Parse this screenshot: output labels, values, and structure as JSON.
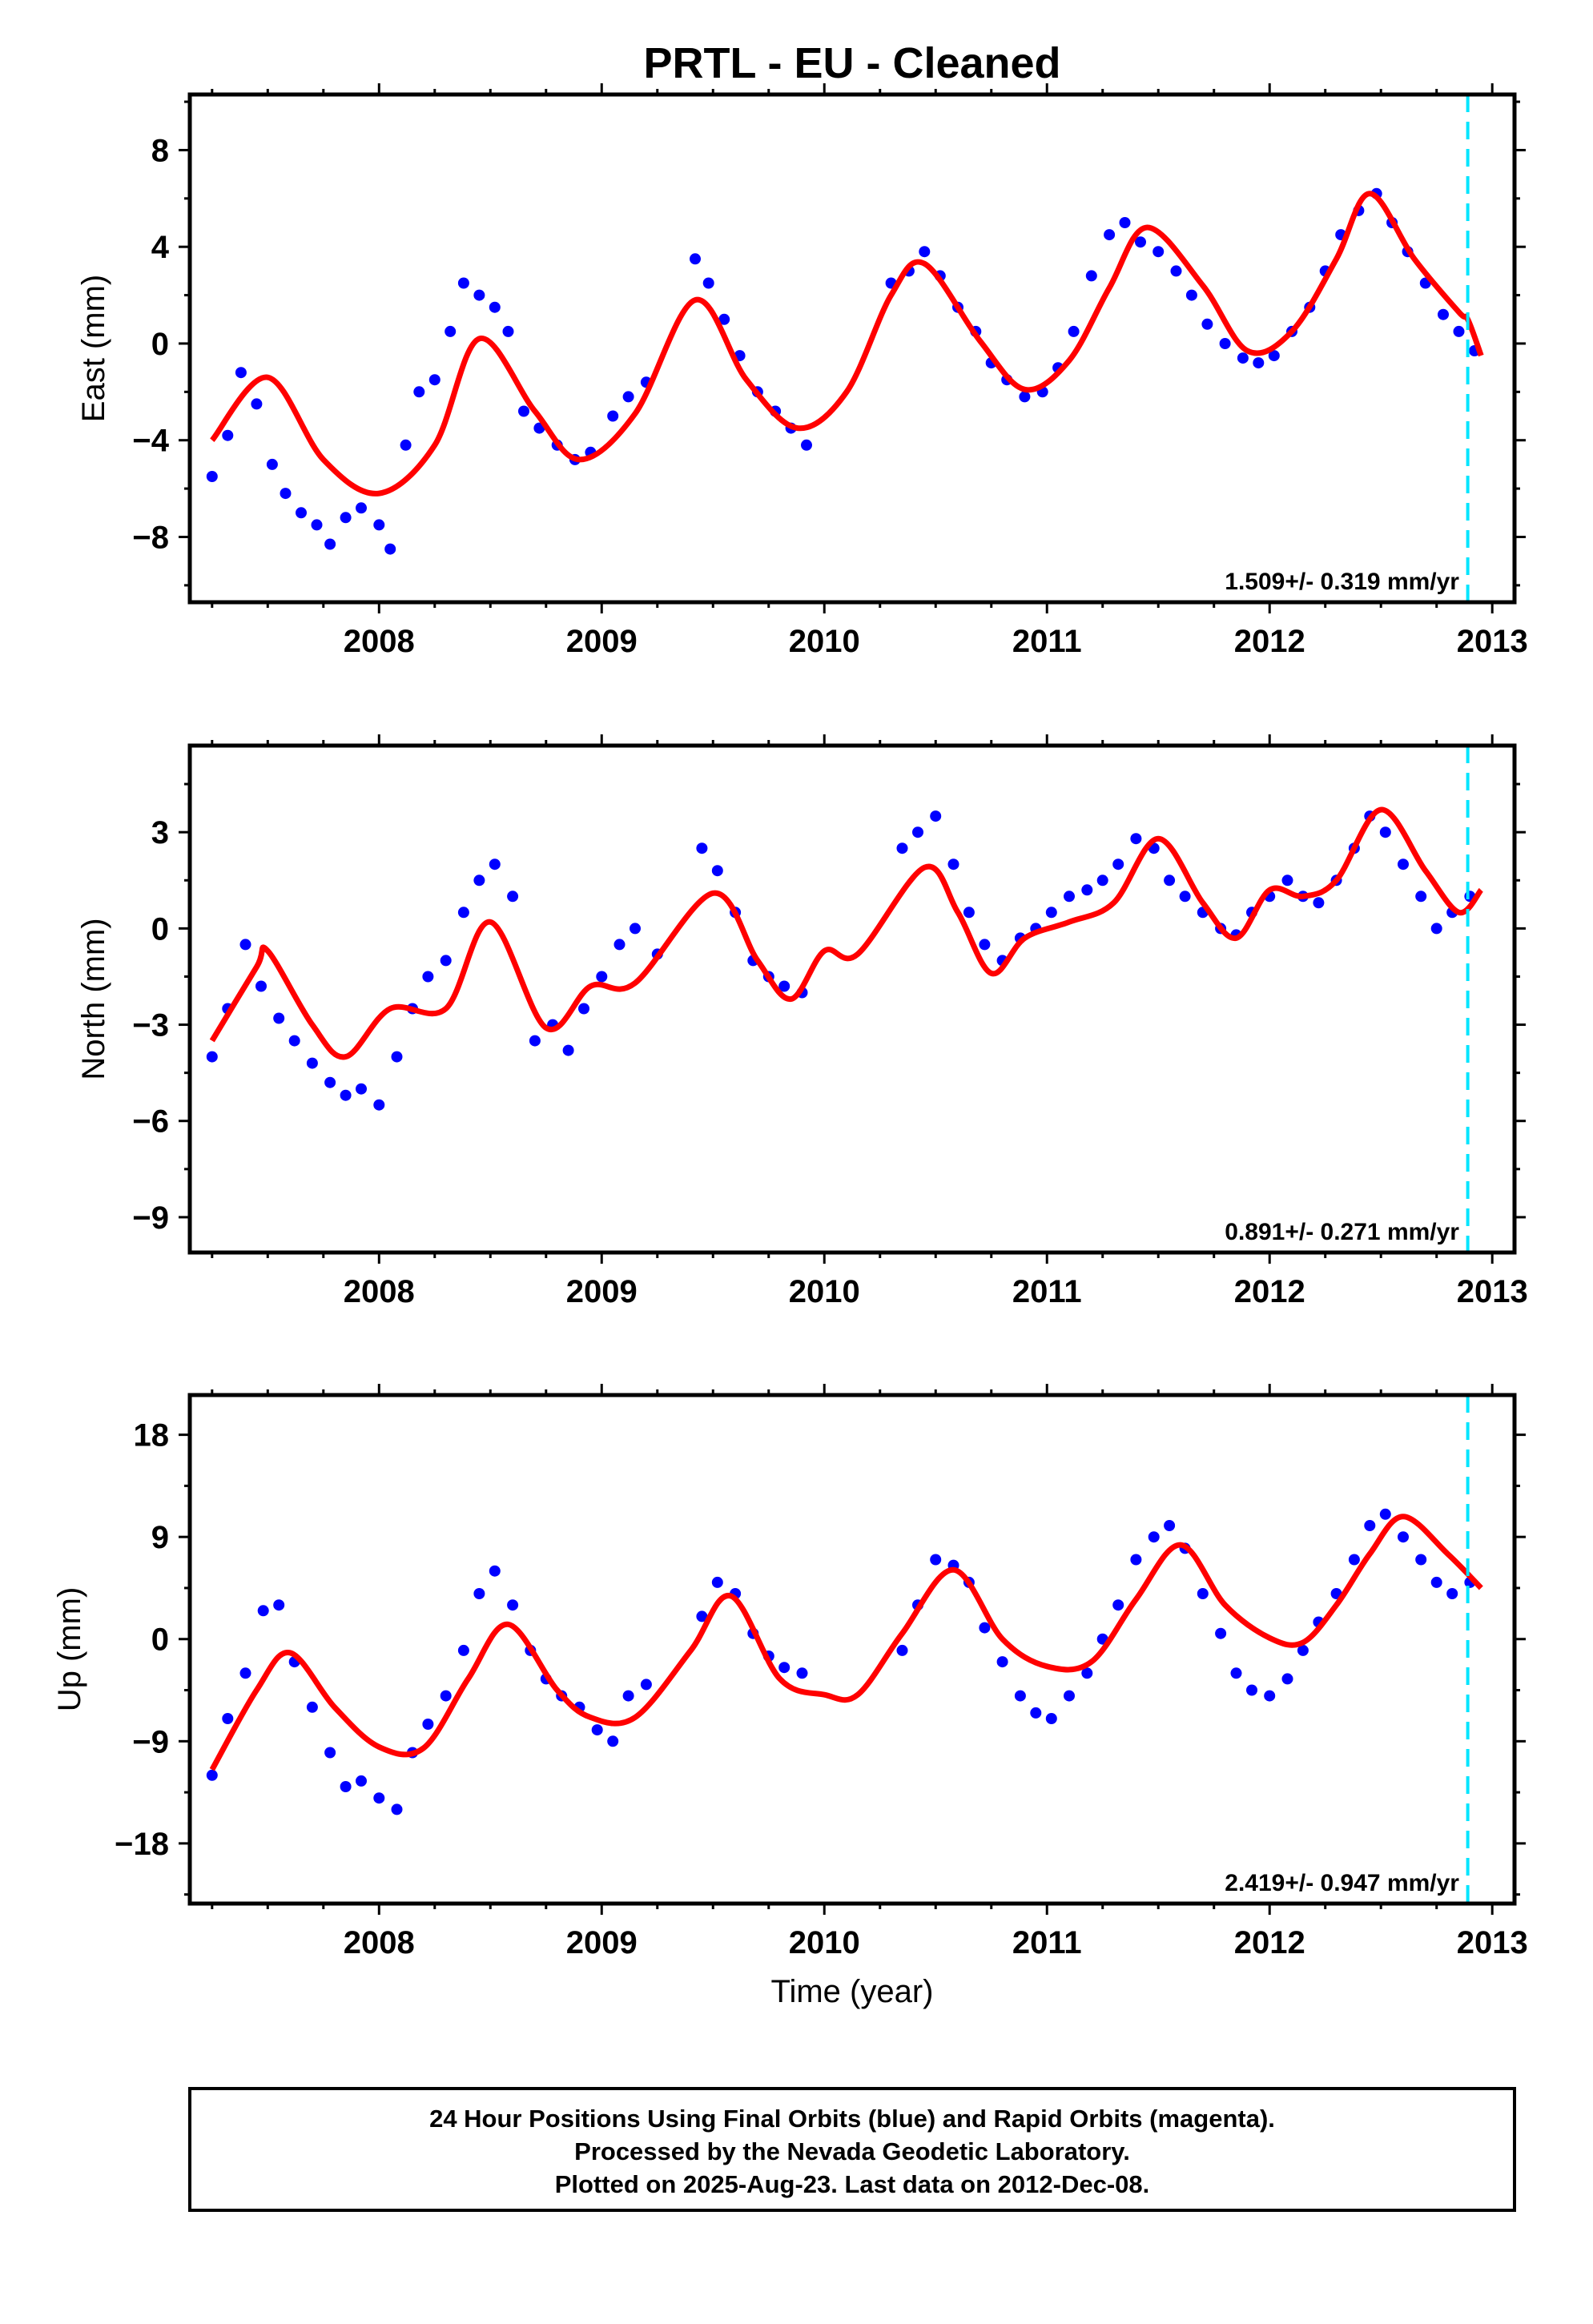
{
  "title": "PRTL  - EU - Cleaned",
  "xlabel": "Time (year)",
  "footer": {
    "line1": "24 Hour Positions Using Final Orbits (blue) and Rapid Orbits (magenta).",
    "line2": "Processed by the Nevada Geodetic Laboratory.",
    "line3": "Plotted on 2025-Aug-23. Last data on 2012-Dec-08."
  },
  "colors": {
    "points": "#0000ff",
    "fit": "#ff0000",
    "marker": "#00e5ff",
    "frame": "#000000"
  },
  "chart_data": [
    {
      "type": "scatter",
      "ylabel": "East (mm)",
      "xlim": [
        2007.15,
        2013.1
      ],
      "ylim": [
        -10.7,
        10.3
      ],
      "x_ticks": [
        2008,
        2009,
        2010,
        2011,
        2012,
        2013
      ],
      "y_ticks": [
        -8,
        -4,
        0,
        4,
        8
      ],
      "rate": "1.509+/- 0.319 mm/yr",
      "marker_x": 2012.89,
      "fit": {
        "x": [
          2007.25,
          2007.5,
          2007.75,
          2008.0,
          2008.25,
          2008.45,
          2008.7,
          2008.9,
          2009.15,
          2009.42,
          2009.65,
          2009.88,
          2010.1,
          2010.3,
          2010.45,
          2010.7,
          2010.9,
          2011.1,
          2011.28,
          2011.45,
          2011.7,
          2011.9,
          2012.1,
          2012.3,
          2012.45,
          2012.65,
          2012.85,
          2012.89,
          2012.95
        ],
        "y": [
          -4.0,
          -1.4,
          -4.8,
          -6.2,
          -4.2,
          0.2,
          -2.8,
          -4.8,
          -2.9,
          1.8,
          -1.5,
          -3.5,
          -2.0,
          2.0,
          3.3,
          0.1,
          -1.9,
          -0.7,
          2.3,
          4.8,
          2.4,
          -0.3,
          0.5,
          3.5,
          6.2,
          3.5,
          1.3,
          1.0,
          -0.5
        ]
      },
      "points": {
        "x": [
          2007.25,
          2007.32,
          2007.38,
          2007.45,
          2007.52,
          2007.58,
          2007.65,
          2007.72,
          2007.78,
          2007.85,
          2007.92,
          2008.0,
          2008.05,
          2008.12,
          2008.18,
          2008.25,
          2008.32,
          2008.38,
          2008.45,
          2008.52,
          2008.58,
          2008.65,
          2008.72,
          2008.8,
          2008.88,
          2008.95,
          2009.05,
          2009.12,
          2009.2,
          2009.42,
          2009.48,
          2009.55,
          2009.62,
          2009.7,
          2009.78,
          2009.85,
          2009.92,
          2010.3,
          2010.38,
          2010.45,
          2010.52,
          2010.6,
          2010.68,
          2010.75,
          2010.82,
          2010.9,
          2010.98,
          2011.05,
          2011.12,
          2011.2,
          2011.28,
          2011.35,
          2011.42,
          2011.5,
          2011.58,
          2011.65,
          2011.72,
          2011.8,
          2011.88,
          2011.95,
          2012.02,
          2012.1,
          2012.18,
          2012.25,
          2012.32,
          2012.4,
          2012.48,
          2012.55,
          2012.62,
          2012.7,
          2012.78,
          2012.85,
          2012.92
        ],
        "y": [
          -5.5,
          -3.8,
          -1.2,
          -2.5,
          -5.0,
          -6.2,
          -7.0,
          -7.5,
          -8.3,
          -7.2,
          -6.8,
          -7.5,
          -8.5,
          -4.2,
          -2.0,
          -1.5,
          0.5,
          2.5,
          2.0,
          1.5,
          0.5,
          -2.8,
          -3.5,
          -4.2,
          -4.8,
          -4.5,
          -3.0,
          -2.2,
          -1.6,
          3.5,
          2.5,
          1.0,
          -0.5,
          -2.0,
          -2.8,
          -3.5,
          -4.2,
          2.5,
          3.0,
          3.8,
          2.8,
          1.5,
          0.5,
          -0.8,
          -1.5,
          -2.2,
          -2.0,
          -1.0,
          0.5,
          2.8,
          4.5,
          5.0,
          4.2,
          3.8,
          3.0,
          2.0,
          0.8,
          0.0,
          -0.6,
          -0.8,
          -0.5,
          0.5,
          1.5,
          3.0,
          4.5,
          5.5,
          6.2,
          5.0,
          3.8,
          2.5,
          1.2,
          0.5,
          -0.3
        ]
      }
    },
    {
      "type": "scatter",
      "ylabel": "North (mm)",
      "xlim": [
        2007.15,
        2013.1
      ],
      "ylim": [
        -10.1,
        5.7
      ],
      "x_ticks": [
        2008,
        2009,
        2010,
        2011,
        2012,
        2013
      ],
      "y_ticks": [
        -9,
        -6,
        -3,
        0,
        3
      ],
      "rate": "0.891+/- 0.271 mm/yr",
      "marker_x": 2012.89,
      "fit": {
        "x": [
          2007.25,
          2007.45,
          2007.5,
          2007.7,
          2007.85,
          2008.05,
          2008.3,
          2008.5,
          2008.75,
          2008.95,
          2009.15,
          2009.5,
          2009.7,
          2009.85,
          2010.0,
          2010.15,
          2010.45,
          2010.6,
          2010.75,
          2010.9,
          2011.1,
          2011.3,
          2011.5,
          2011.7,
          2011.85,
          2012.0,
          2012.15,
          2012.3,
          2012.5,
          2012.7,
          2012.85,
          2012.95
        ],
        "y": [
          -3.5,
          -1.2,
          -0.7,
          -3.0,
          -4.0,
          -2.5,
          -2.5,
          0.2,
          -3.1,
          -1.8,
          -1.7,
          1.1,
          -1.0,
          -2.2,
          -0.7,
          -0.8,
          1.9,
          0.5,
          -1.4,
          -0.3,
          0.2,
          0.8,
          2.8,
          0.8,
          -0.3,
          1.2,
          1.0,
          1.5,
          3.7,
          1.8,
          0.5,
          1.2
        ]
      },
      "points": {
        "x": [
          2007.25,
          2007.32,
          2007.4,
          2007.47,
          2007.55,
          2007.62,
          2007.7,
          2007.78,
          2007.85,
          2007.92,
          2008.0,
          2008.08,
          2008.15,
          2008.22,
          2008.3,
          2008.38,
          2008.45,
          2008.52,
          2008.6,
          2008.7,
          2008.78,
          2008.85,
          2008.92,
          2009.0,
          2009.08,
          2009.15,
          2009.25,
          2009.45,
          2009.52,
          2009.6,
          2009.68,
          2009.75,
          2009.82,
          2009.9,
          2010.35,
          2010.42,
          2010.5,
          2010.58,
          2010.65,
          2010.72,
          2010.8,
          2010.88,
          2010.95,
          2011.02,
          2011.1,
          2011.18,
          2011.25,
          2011.32,
          2011.4,
          2011.48,
          2011.55,
          2011.62,
          2011.7,
          2011.78,
          2011.85,
          2011.92,
          2012.0,
          2012.08,
          2012.15,
          2012.22,
          2012.3,
          2012.38,
          2012.45,
          2012.52,
          2012.6,
          2012.68,
          2012.75,
          2012.82,
          2012.9
        ],
        "y": [
          -4.0,
          -2.5,
          -0.5,
          -1.8,
          -2.8,
          -3.5,
          -4.2,
          -4.8,
          -5.2,
          -5.0,
          -5.5,
          -4.0,
          -2.5,
          -1.5,
          -1.0,
          0.5,
          1.5,
          2.0,
          1.0,
          -3.5,
          -3.0,
          -3.8,
          -2.5,
          -1.5,
          -0.5,
          0.0,
          -0.8,
          2.5,
          1.8,
          0.5,
          -1.0,
          -1.5,
          -1.8,
          -2.0,
          2.5,
          3.0,
          3.5,
          2.0,
          0.5,
          -0.5,
          -1.0,
          -0.3,
          0.0,
          0.5,
          1.0,
          1.2,
          1.5,
          2.0,
          2.8,
          2.5,
          1.5,
          1.0,
          0.5,
          0.0,
          -0.2,
          0.5,
          1.0,
          1.5,
          1.0,
          0.8,
          1.5,
          2.5,
          3.5,
          3.0,
          2.0,
          1.0,
          0.0,
          0.5,
          1.0
        ]
      }
    },
    {
      "type": "scatter",
      "ylabel": "Up (mm)",
      "xlim": [
        2007.15,
        2013.1
      ],
      "ylim": [
        -23.3,
        21.5
      ],
      "x_ticks": [
        2008,
        2009,
        2010,
        2011,
        2012,
        2013
      ],
      "y_ticks": [
        -18,
        -9,
        0,
        9,
        18
      ],
      "rate": "2.419+/- 0.947 mm/yr",
      "marker_x": 2012.89,
      "fit": {
        "x": [
          2007.25,
          2007.45,
          2007.6,
          2007.8,
          2008.0,
          2008.2,
          2008.4,
          2008.58,
          2008.8,
          2008.95,
          2009.15,
          2009.4,
          2009.58,
          2009.8,
          2010.0,
          2010.15,
          2010.35,
          2010.58,
          2010.8,
          2011.0,
          2011.2,
          2011.4,
          2011.6,
          2011.8,
          2012.0,
          2012.15,
          2012.3,
          2012.45,
          2012.6,
          2012.8,
          2012.95
        ],
        "y": [
          -11.5,
          -4.5,
          -1.2,
          -6.0,
          -9.5,
          -9.6,
          -3.5,
          1.3,
          -4.5,
          -6.9,
          -6.9,
          -1.0,
          3.8,
          -3.5,
          -4.9,
          -4.9,
          0.5,
          6.1,
          0.0,
          -2.4,
          -2.0,
          3.5,
          8.3,
          3.0,
          0.1,
          -0.3,
          3.0,
          7.5,
          10.8,
          7.5,
          4.5
        ]
      },
      "points": {
        "x": [
          2007.25,
          2007.32,
          2007.4,
          2007.48,
          2007.55,
          2007.62,
          2007.7,
          2007.78,
          2007.85,
          2007.92,
          2008.0,
          2008.08,
          2008.15,
          2008.22,
          2008.3,
          2008.38,
          2008.45,
          2008.52,
          2008.6,
          2008.68,
          2008.75,
          2008.82,
          2008.9,
          2008.98,
          2009.05,
          2009.12,
          2009.2,
          2009.45,
          2009.52,
          2009.6,
          2009.68,
          2009.75,
          2009.82,
          2009.9,
          2010.35,
          2010.42,
          2010.5,
          2010.58,
          2010.65,
          2010.72,
          2010.8,
          2010.88,
          2010.95,
          2011.02,
          2011.1,
          2011.18,
          2011.25,
          2011.32,
          2011.4,
          2011.48,
          2011.55,
          2011.62,
          2011.7,
          2011.78,
          2011.85,
          2011.92,
          2012.0,
          2012.08,
          2012.15,
          2012.22,
          2012.3,
          2012.38,
          2012.45,
          2012.52,
          2012.6,
          2012.68,
          2012.75,
          2012.82,
          2012.9
        ],
        "y": [
          -12.0,
          -7.0,
          -3.0,
          2.5,
          3.0,
          -2.0,
          -6.0,
          -10.0,
          -13.0,
          -12.5,
          -14.0,
          -15.0,
          -10.0,
          -7.5,
          -5.0,
          -1.0,
          4.0,
          6.0,
          3.0,
          -1.0,
          -3.5,
          -5.0,
          -6.0,
          -8.0,
          -9.0,
          -5.0,
          -4.0,
          2.0,
          5.0,
          4.0,
          0.5,
          -1.5,
          -2.5,
          -3.0,
          -1.0,
          3.0,
          7.0,
          6.5,
          5.0,
          1.0,
          -2.0,
          -5.0,
          -6.5,
          -7.0,
          -5.0,
          -3.0,
          0.0,
          3.0,
          7.0,
          9.0,
          10.0,
          8.0,
          4.0,
          0.5,
          -3.0,
          -4.5,
          -5.0,
          -3.5,
          -1.0,
          1.5,
          4.0,
          7.0,
          10.0,
          11.0,
          9.0,
          7.0,
          5.0,
          4.0,
          5.0
        ]
      }
    }
  ]
}
